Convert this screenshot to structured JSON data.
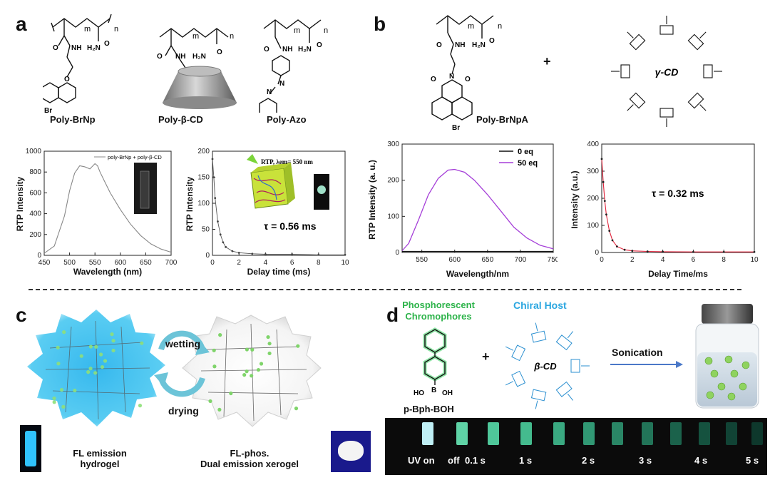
{
  "panels": {
    "a": {
      "letter": "a",
      "compounds": [
        "Poly-BrNp",
        "Poly-β-CD",
        "Poly-Azo"
      ],
      "chart1": {
        "legend": "poly-BrNp + poly-β-CD",
        "xlabel": "Wavelength (nm)",
        "ylabel": "RTP Intensity",
        "xticks": [
          "450",
          "500",
          "550",
          "600",
          "650",
          "700"
        ],
        "yticks": [
          "0",
          "200",
          "400",
          "600",
          "800",
          "1000"
        ]
      },
      "chart2": {
        "xlabel": "Delay time (ms)",
        "ylabel": "RTP Intensity",
        "xticks": [
          "0",
          "2",
          "4",
          "6",
          "8",
          "10"
        ],
        "yticks": [
          "0",
          "50",
          "100",
          "150",
          "200"
        ],
        "inset_rtp": "RTP, λem= 550 nm",
        "tau": "τ = 0.56 ms"
      }
    },
    "b": {
      "letter": "b",
      "compound": "Poly-BrNpA",
      "host": "γ-CD",
      "plus": "+",
      "chart1": {
        "xlabel": "Wavelength/nm",
        "ylabel": "RTP Intensity (a. u.)",
        "xticks": [
          "550",
          "600",
          "650",
          "700",
          "750"
        ],
        "yticks": [
          "0",
          "100",
          "200",
          "300"
        ],
        "legend": [
          "0 eq",
          "50 eq"
        ]
      },
      "chart2": {
        "xlabel": "Delay Time/ms",
        "ylabel": "Intensity (a.u.)",
        "xticks": [
          "0",
          "2",
          "4",
          "6",
          "8",
          "10"
        ],
        "yticks": [
          "0",
          "100",
          "200",
          "300",
          "400"
        ],
        "tau": "τ = 0.32 ms"
      }
    },
    "c": {
      "letter": "c",
      "wetting": "wetting",
      "drying": "drying",
      "left_caption": [
        "FL emission",
        "hydrogel"
      ],
      "right_caption": [
        "FL-phos.",
        "Dual emission xerogel"
      ]
    },
    "d": {
      "letter": "d",
      "chromophore_title": [
        "Phosphorescent",
        "Chromophores"
      ],
      "host_title": "Chiral Host",
      "host": "β-CD",
      "plus": "+",
      "sonication": "Sonication",
      "compound": "p-Bph-BOH",
      "strip_labels": [
        "UV on",
        "off",
        "0.1 s",
        "1 s",
        "2 s",
        "3 s",
        "4 s",
        "5 s"
      ]
    }
  },
  "colors": {
    "purple": "#a53fd8",
    "red_decay": "#e0223a",
    "green_title": "#2db34a",
    "blue_title": "#2aa6e0",
    "hydrogel_blue": "#3fc4ef",
    "arrow_blue": "#4a78c8"
  },
  "chart_data": [
    {
      "type": "line",
      "title": "",
      "xlabel": "Wavelength (nm)",
      "ylabel": "RTP Intensity",
      "xlim": [
        450,
        700
      ],
      "ylim": [
        0,
        1000
      ],
      "series": [
        {
          "name": "poly-BrNp + poly-β-CD",
          "x": [
            450,
            470,
            490,
            500,
            510,
            520,
            530,
            540,
            550,
            555,
            560,
            570,
            580,
            600,
            620,
            640,
            660,
            680,
            700
          ],
          "y": [
            20,
            90,
            380,
            620,
            790,
            860,
            850,
            830,
            880,
            860,
            800,
            700,
            600,
            440,
            300,
            190,
            110,
            60,
            30
          ]
        }
      ]
    },
    {
      "type": "line",
      "title": "",
      "xlabel": "Delay time (ms)",
      "ylabel": "RTP Intensity",
      "xlim": [
        0,
        10
      ],
      "ylim": [
        0,
        200
      ],
      "series": [
        {
          "x": [
            0,
            0.1,
            0.2,
            0.4,
            0.6,
            0.8,
            1.0,
            1.5,
            2,
            3,
            4,
            6,
            8,
            10
          ],
          "y": [
            185,
            150,
            110,
            65,
            40,
            25,
            16,
            8,
            5,
            3,
            2,
            2,
            1,
            1
          ]
        }
      ]
    },
    {
      "type": "line",
      "title": "",
      "xlabel": "Wavelength/nm",
      "ylabel": "RTP Intensity (a. u.)",
      "xlim": [
        520,
        750
      ],
      "ylim": [
        0,
        300
      ],
      "series": [
        {
          "name": "0 eq",
          "x": [
            520,
            550,
            600,
            650,
            700,
            750
          ],
          "y": [
            3,
            3,
            3,
            3,
            3,
            3
          ]
        },
        {
          "name": "50 eq",
          "x": [
            520,
            530,
            545,
            560,
            575,
            590,
            600,
            615,
            630,
            650,
            670,
            690,
            710,
            730,
            750
          ],
          "y": [
            5,
            25,
            90,
            160,
            205,
            228,
            230,
            222,
            200,
            160,
            115,
            70,
            40,
            20,
            10
          ]
        }
      ]
    },
    {
      "type": "line",
      "title": "",
      "xlabel": "Delay Time/ms",
      "ylabel": "Intensity (a.u.)",
      "xlim": [
        0,
        10
      ],
      "ylim": [
        0,
        400
      ],
      "series": [
        {
          "x": [
            0,
            0.1,
            0.2,
            0.3,
            0.5,
            0.7,
            1.0,
            1.5,
            2,
            3,
            4,
            6,
            8,
            10
          ],
          "y": [
            345,
            260,
            190,
            140,
            80,
            45,
            22,
            10,
            6,
            4,
            3,
            2,
            2,
            2
          ]
        }
      ]
    }
  ]
}
